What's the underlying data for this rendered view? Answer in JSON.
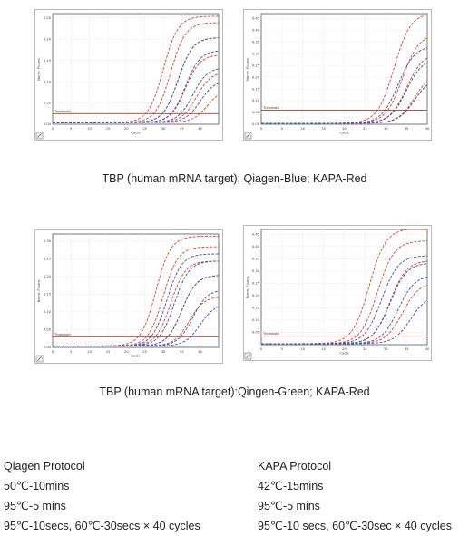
{
  "charts": [
    {
      "id": "p1",
      "chart_data": {
        "type": "line",
        "xlabel": "Cycle",
        "ylabel": "Norm. Fluoro.",
        "xlim": [
          0,
          45
        ],
        "ylim": [
          0.0,
          0.26
        ],
        "x_ticks": [
          "0",
          "5",
          "10",
          "15",
          "20",
          "25",
          "30",
          "35",
          "40"
        ],
        "y_ticks": [
          "0.00",
          "0.05",
          "0.10",
          "0.15",
          "0.20",
          "0.25"
        ],
        "threshold_label": "Threshold",
        "threshold_value": 0.025,
        "grid": true,
        "series": [
          {
            "color": "#d9432b",
            "midpoint": 30,
            "plateau": 0.25
          },
          {
            "color": "#d9432b",
            "midpoint": 32,
            "plateau": 0.235
          },
          {
            "color": "#d9432b",
            "midpoint": 34,
            "plateau": 0.2
          },
          {
            "color": "#d9432b",
            "midpoint": 36,
            "plateau": 0.16
          },
          {
            "color": "#d9432b",
            "midpoint": 39,
            "plateau": 0.12
          },
          {
            "color": "#d9432b",
            "midpoint": 42,
            "plateau": 0.08
          },
          {
            "color": "#3c4fa8",
            "midpoint": 34,
            "plateau": 0.2
          },
          {
            "color": "#3c4fa8",
            "midpoint": 36,
            "plateau": 0.17
          },
          {
            "color": "#3c4fa8",
            "midpoint": 38,
            "plateau": 0.13
          },
          {
            "color": "#3c4fa8",
            "midpoint": 40,
            "plateau": 0.1
          }
        ]
      }
    },
    {
      "id": "p2",
      "chart_data": {
        "type": "line",
        "xlabel": "Cycle",
        "ylabel": "Norm. Fluoro.",
        "xlim": [
          0,
          40
        ],
        "ylim": [
          0.0,
          0.47
        ],
        "x_ticks": [
          "0",
          "5",
          "10",
          "15",
          "20",
          "25",
          "30",
          "35",
          "40"
        ],
        "y_ticks": [
          "0.00",
          "0.05",
          "0.10",
          "0.15",
          "0.20",
          "0.25",
          "0.30",
          "0.35",
          "0.40",
          "0.45"
        ],
        "threshold_label": "Threshold",
        "threshold_value": 0.06,
        "grid": true,
        "series": [
          {
            "color": "#d9432b",
            "midpoint": 32,
            "plateau": 0.47
          },
          {
            "color": "#d9432b",
            "midpoint": 34,
            "plateau": 0.38
          },
          {
            "color": "#d9432b",
            "midpoint": 35,
            "plateau": 0.3
          },
          {
            "color": "#d9432b",
            "midpoint": 37,
            "plateau": 0.22
          },
          {
            "color": "#3c4fa8",
            "midpoint": 33,
            "plateau": 0.33
          },
          {
            "color": "#3c4fa8",
            "midpoint": 35,
            "plateau": 0.28
          },
          {
            "color": "#3c4fa8",
            "midpoint": 37,
            "plateau": 0.2
          }
        ]
      }
    },
    {
      "id": "p3",
      "chart_data": {
        "type": "line",
        "xlabel": "Cycle",
        "ylabel": "Norm. Fluoro.",
        "xlim": [
          0,
          45
        ],
        "ylim": [
          0.0,
          0.32
        ],
        "x_ticks": [
          "0",
          "5",
          "10",
          "15",
          "20",
          "25",
          "30",
          "35",
          "40"
        ],
        "y_ticks": [
          "0.00",
          "0.05",
          "0.10",
          "0.15",
          "0.20",
          "0.25",
          "0.30"
        ],
        "threshold_label": "Threshold",
        "threshold_value": 0.03,
        "grid": true,
        "series": [
          {
            "color": "#d9432b",
            "midpoint": 28,
            "plateau": 0.31
          },
          {
            "color": "#d9432b",
            "midpoint": 30,
            "plateau": 0.28
          },
          {
            "color": "#d9432b",
            "midpoint": 32,
            "plateau": 0.24
          },
          {
            "color": "#d9432b",
            "midpoint": 35,
            "plateau": 0.2
          },
          {
            "color": "#d9432b",
            "midpoint": 37,
            "plateau": 0.14
          },
          {
            "color": "#3c4fa8",
            "midpoint": 31,
            "plateau": 0.26
          },
          {
            "color": "#3c4fa8",
            "midpoint": 33,
            "plateau": 0.24
          },
          {
            "color": "#3c4fa8",
            "midpoint": 35,
            "plateau": 0.2
          },
          {
            "color": "#3c4fa8",
            "midpoint": 38,
            "plateau": 0.16
          },
          {
            "color": "#3c4fa8",
            "midpoint": 40,
            "plateau": 0.12
          }
        ]
      }
    },
    {
      "id": "p4",
      "chart_data": {
        "type": "line",
        "xlabel": "Cycle",
        "ylabel": "Norm. Fluoro.",
        "xlim": [
          0,
          40
        ],
        "ylim": [
          0.0,
          0.47
        ],
        "x_ticks": [
          "0",
          "5",
          "10",
          "15",
          "20",
          "25",
          "30",
          "35",
          "40"
        ],
        "y_ticks": [
          "0.05",
          "0.10",
          "0.15",
          "0.20",
          "0.25",
          "0.30",
          "0.35",
          "0.40",
          "0.45"
        ],
        "threshold_label": "Threshold",
        "threshold_value": 0.035,
        "grid": true,
        "series": [
          {
            "color": "#d9432b",
            "midpoint": 26,
            "plateau": 0.47
          },
          {
            "color": "#d9432b",
            "midpoint": 28,
            "plateau": 0.42
          },
          {
            "color": "#d9432b",
            "midpoint": 31,
            "plateau": 0.34
          },
          {
            "color": "#d9432b",
            "midpoint": 34,
            "plateau": 0.25
          },
          {
            "color": "#3c4fa8",
            "midpoint": 29,
            "plateau": 0.36
          },
          {
            "color": "#3c4fa8",
            "midpoint": 31,
            "plateau": 0.33
          },
          {
            "color": "#3c4fa8",
            "midpoint": 33,
            "plateau": 0.28
          },
          {
            "color": "#3c4fa8",
            "midpoint": 36,
            "plateau": 0.2
          }
        ]
      }
    }
  ],
  "captions": {
    "top": "TBP (human mRNA target): Qiagen-Blue; KAPA-Red",
    "bottom": "TBP (human mRNA target):Qingen-Green; KAPA-Red"
  },
  "protocols": {
    "qiagen": {
      "title": "Qiagen Protocol",
      "steps": [
        "50℃-10mins",
        "95℃-5 mins",
        "95℃-10secs, 60℃-30secs × 40 cycles"
      ]
    },
    "kapa": {
      "title": "KAPA Protocol",
      "steps": [
        "42℃-15mins",
        "95℃-5 mins",
        "95℃-10 secs, 60℃-30sec × 40 cycles"
      ]
    }
  }
}
